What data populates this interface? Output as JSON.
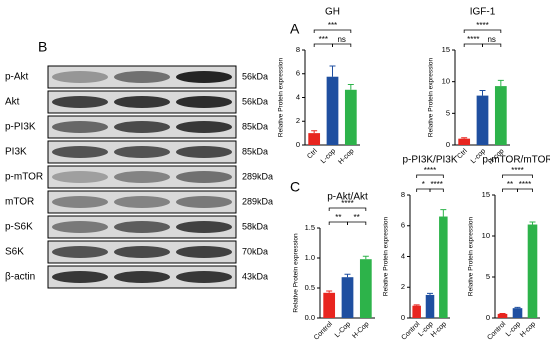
{
  "blot": {
    "panel": "B",
    "rows": [
      {
        "protein": "p-Akt",
        "size": "56kDa"
      },
      {
        "protein": "Akt",
        "size": "56kDa"
      },
      {
        "protein": "p-PI3K",
        "size": "85kDa"
      },
      {
        "protein": "PI3K",
        "size": "85kDa"
      },
      {
        "protein": "p-mTOR",
        "size": "289kDa"
      },
      {
        "protein": "mTOR",
        "size": "289kDa"
      },
      {
        "protein": "p-S6K",
        "size": "58kDa"
      },
      {
        "protein": "S6K",
        "size": "70kDa"
      },
      {
        "protein": "β-actin",
        "size": "43kDa"
      }
    ]
  },
  "panels": [
    "A",
    "C"
  ],
  "chart_data": [
    {
      "type": "bar",
      "title": "GH",
      "y_label": "Relative Protein expression",
      "categories": [
        "Ctrl",
        "L-cop",
        "H-cop"
      ],
      "colors": [
        "#e8251f",
        "#1f4fa0",
        "#2db34a"
      ],
      "values": [
        1.0,
        5.75,
        4.65
      ],
      "errors": [
        0.2,
        0.9,
        0.45
      ],
      "ylim": [
        0,
        8
      ],
      "yticks": [
        0,
        2,
        4,
        6,
        8
      ],
      "annotations": [
        {
          "label": "***",
          "between": [
            "Ctrl",
            "L-cop"
          ]
        },
        {
          "label": "ns",
          "between": [
            "L-cop",
            "H-cop"
          ]
        },
        {
          "label": "***",
          "between": [
            "Ctrl",
            "H-cop"
          ]
        }
      ]
    },
    {
      "type": "bar",
      "title": "IGF-1",
      "y_label": "Relative Protein expression",
      "categories": [
        "Ctrl",
        "L-cop",
        "H-cop"
      ],
      "colors": [
        "#e8251f",
        "#1f4fa0",
        "#2db34a"
      ],
      "values": [
        1.0,
        7.8,
        9.3
      ],
      "errors": [
        0.15,
        0.8,
        0.9
      ],
      "ylim": [
        0,
        15
      ],
      "yticks": [
        0,
        5,
        10,
        15
      ],
      "annotations": [
        {
          "label": "****",
          "between": [
            "Ctrl",
            "L-cop"
          ]
        },
        {
          "label": "ns",
          "between": [
            "L-cop",
            "H-cop"
          ]
        },
        {
          "label": "****",
          "between": [
            "Ctrl",
            "H-cop"
          ]
        }
      ]
    },
    {
      "type": "bar",
      "title": "p-Akt/Akt",
      "y_label": "Relative Protein expression",
      "categories": [
        "Control",
        "L-Cop",
        "H-Cop"
      ],
      "colors": [
        "#e8251f",
        "#1f4fa0",
        "#2db34a"
      ],
      "values": [
        0.42,
        0.68,
        0.98
      ],
      "errors": [
        0.03,
        0.05,
        0.05
      ],
      "ylim": [
        0,
        1.5
      ],
      "yticks": [
        {
          "value": 0,
          "label": "0.0"
        },
        0.5,
        {
          "value": 1,
          "label": "1.0"
        },
        1.5
      ],
      "annotations": [
        {
          "label": "**",
          "between": [
            "Control",
            "L-Cop"
          ]
        },
        {
          "label": "**",
          "between": [
            "L-Cop",
            "H-Cop"
          ]
        },
        {
          "label": "****",
          "between": [
            "Control",
            "H-Cop"
          ]
        }
      ]
    },
    {
      "type": "bar",
      "title": "p-PI3K/PI3K",
      "y_label": "Relative Protein expression",
      "categories": [
        "Control",
        "L-cop",
        "H-cop"
      ],
      "colors": [
        "#e8251f",
        "#1f4fa0",
        "#2db34a"
      ],
      "values": [
        0.8,
        1.5,
        6.6
      ],
      "errors": [
        0.05,
        0.1,
        0.45
      ],
      "ylim": [
        0,
        8
      ],
      "yticks": [
        0,
        2,
        4,
        6,
        8
      ],
      "annotations": [
        {
          "label": "*",
          "between": [
            "Control",
            "L-cop"
          ]
        },
        {
          "label": "****",
          "between": [
            "L-cop",
            "H-cop"
          ]
        },
        {
          "label": "****",
          "between": [
            "Control",
            "H-cop"
          ]
        }
      ]
    },
    {
      "type": "bar",
      "title": "p-mTOR/mTOR",
      "y_label": "Relative Protein expression",
      "categories": [
        "Control",
        "L-cop",
        "H-cop"
      ],
      "colors": [
        "#e8251f",
        "#1f4fa0",
        "#2db34a"
      ],
      "values": [
        0.5,
        1.2,
        11.4
      ],
      "errors": [
        0.05,
        0.1,
        0.3
      ],
      "ylim": [
        0,
        15
      ],
      "yticks": [
        0,
        5,
        10,
        15
      ],
      "annotations": [
        {
          "label": "**",
          "between": [
            "Control",
            "L-cop"
          ]
        },
        {
          "label": "****",
          "between": [
            "L-cop",
            "H-cop"
          ]
        },
        {
          "label": "****",
          "between": [
            "Control",
            "H-cop"
          ]
        }
      ]
    }
  ]
}
